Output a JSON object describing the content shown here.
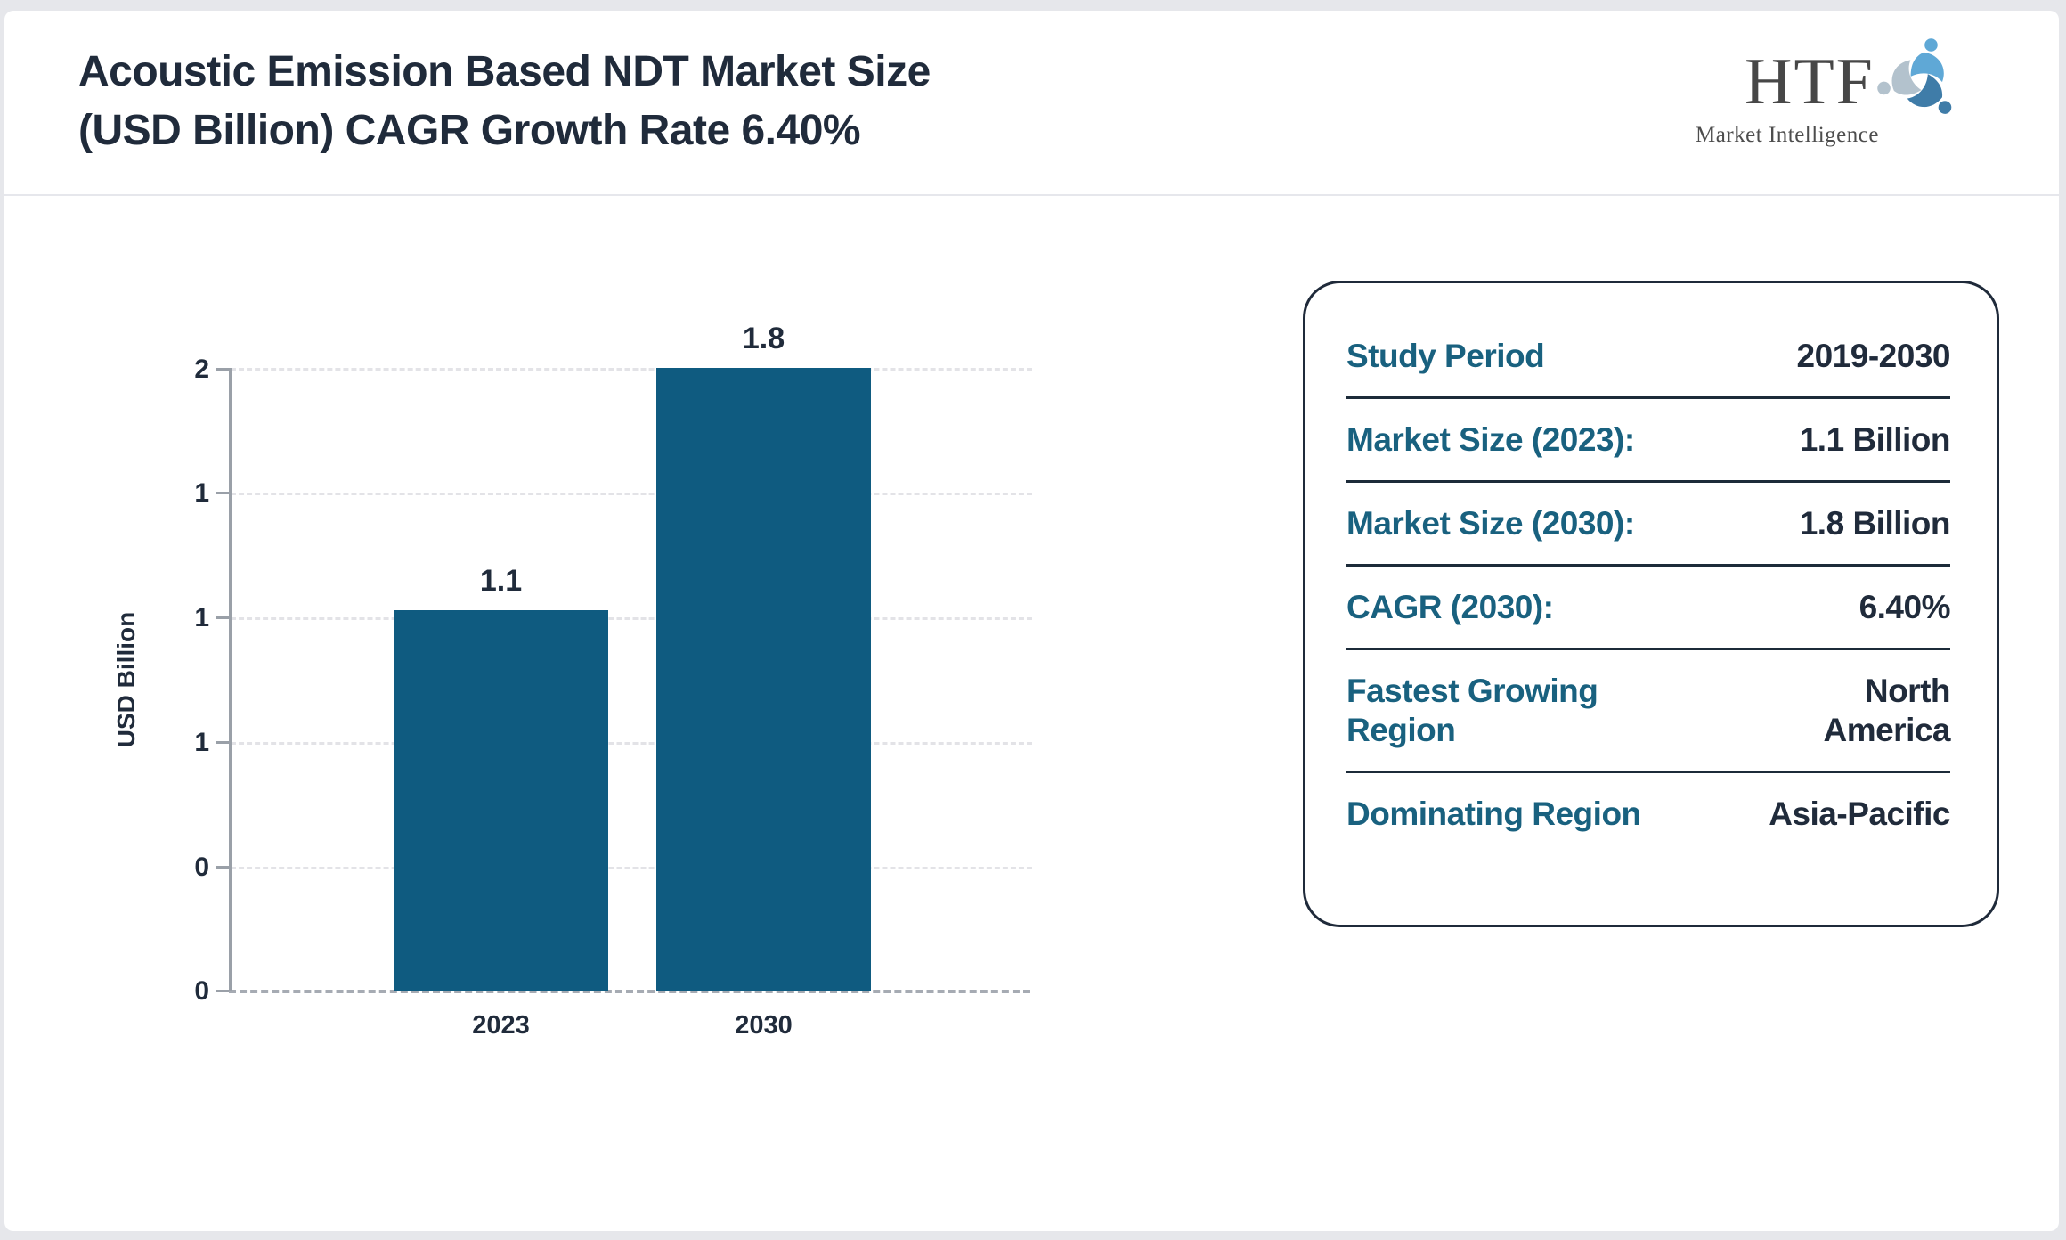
{
  "header": {
    "title_line1": "Acoustic Emission Based NDT Market Size",
    "title_line2": "(USD Billion) CAGR Growth Rate 6.40%",
    "logo": {
      "text": "HTF",
      "subtext": "Market Intelligence"
    }
  },
  "chart_data": {
    "type": "bar",
    "title": "Acoustic Emission Based NDT Market Size (USD Billion) CAGR Growth Rate 6.40%",
    "categories": [
      "2023",
      "2030"
    ],
    "values": [
      1.1,
      1.8
    ],
    "value_labels": [
      "1.1",
      "1.8"
    ],
    "xlabel": "",
    "ylabel": "USD Billion",
    "ylim": [
      0,
      1.8
    ],
    "y_tick_labels": [
      "2",
      "1",
      "1",
      "1",
      "0",
      "0"
    ],
    "grid": "dashed horizontal gridlines",
    "legend": "none",
    "bar_color": "#0f5b80"
  },
  "info_panel": {
    "rows": [
      {
        "label": "Study Period",
        "value": "2019-2030"
      },
      {
        "label": "Market Size (2023):",
        "value": "1.1 Billion"
      },
      {
        "label": "Market Size (2030):",
        "value": "1.8 Billion"
      },
      {
        "label": "CAGR (2030):",
        "value": "6.40%"
      },
      {
        "label": "Fastest Growing Region",
        "value": "North America"
      },
      {
        "label": "Dominating Region",
        "value": "Asia-Pacific"
      }
    ]
  },
  "colors": {
    "accent_teal": "#19617f",
    "bar_fill": "#0f5b80",
    "text_navy": "#202b3b",
    "panel_border": "#1f2a3a",
    "page_frame": "#e6e7eb",
    "logo_blue_light": "#5fa8d6",
    "logo_blue_dark": "#3f7ca8",
    "logo_gray": "#b3c2cd"
  }
}
